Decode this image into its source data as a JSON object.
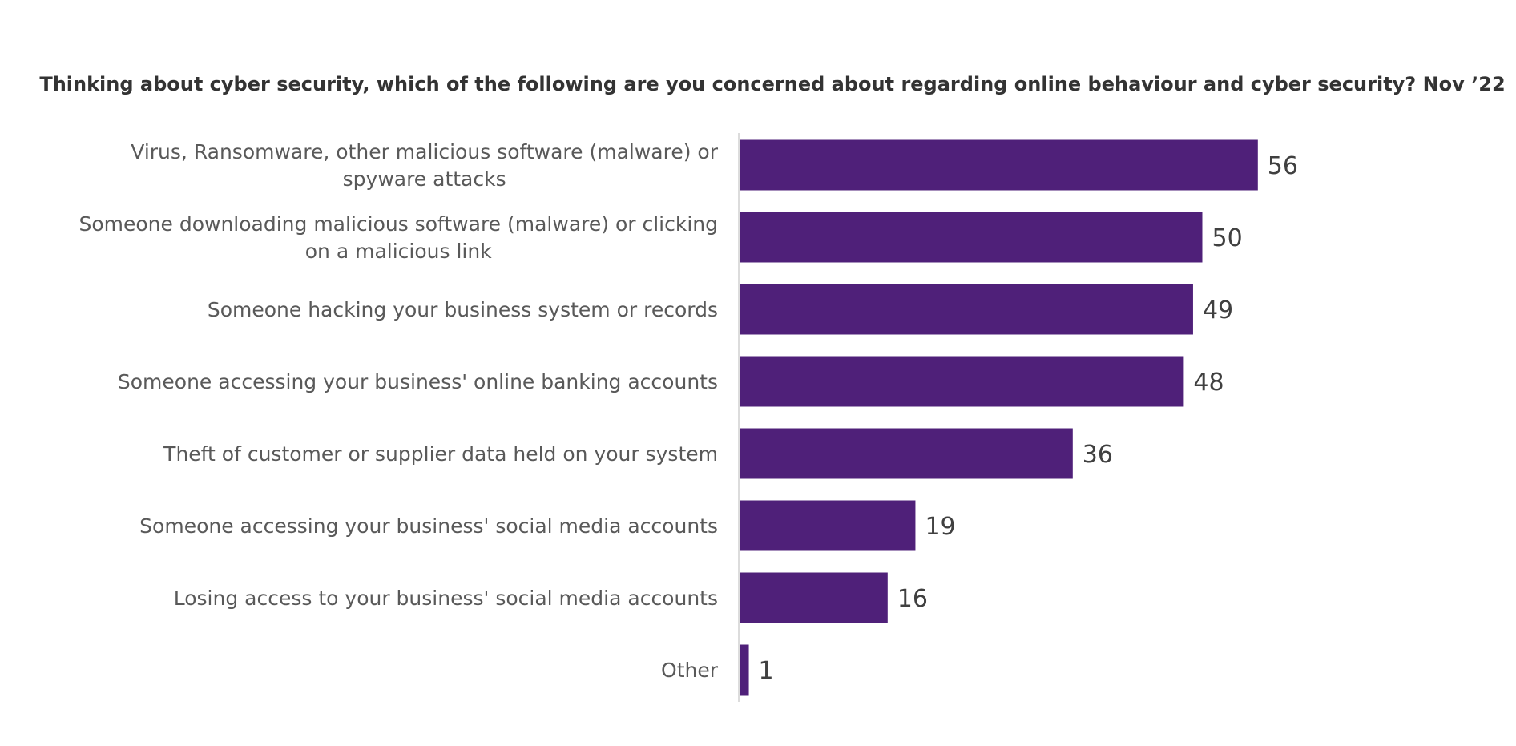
{
  "chart_data": {
    "type": "bar",
    "orientation": "horizontal",
    "title": "Thinking about cyber security, which of the following are you concerned about regarding online behaviour and cyber security? Nov ’22",
    "categories": [
      "Virus, Ransomware, other malicious software (malware) or spyware attacks",
      "Someone downloading malicious software (malware) or clicking on a malicious link",
      "Someone hacking your business system or records",
      "Someone accessing your business' online banking accounts",
      "Theft of customer or supplier data held on your system",
      "Someone accessing your business' social media accounts",
      "Losing access to your business' social media accounts",
      "Other"
    ],
    "category_lines": [
      [
        "Virus, Ransomware, other malicious software (malware) or",
        "spyware attacks"
      ],
      [
        "Someone downloading malicious software (malware) or clicking",
        "on a malicious link"
      ],
      [
        "Someone hacking your business system or records"
      ],
      [
        "Someone accessing your business' online banking accounts"
      ],
      [
        "Theft of customer or supplier data held on your system"
      ],
      [
        "Someone accessing your business' social media accounts"
      ],
      [
        "Losing access to your business' social media accounts"
      ],
      [
        "Other"
      ]
    ],
    "values": [
      56,
      50,
      49,
      48,
      36,
      19,
      16,
      1
    ],
    "xlim": [
      0,
      100
    ],
    "xlabel": "",
    "ylabel": "",
    "grid": false,
    "legend": "none",
    "data_labels": true,
    "bar_color": "#4f2079",
    "axis_color": "#d0d0d0"
  }
}
